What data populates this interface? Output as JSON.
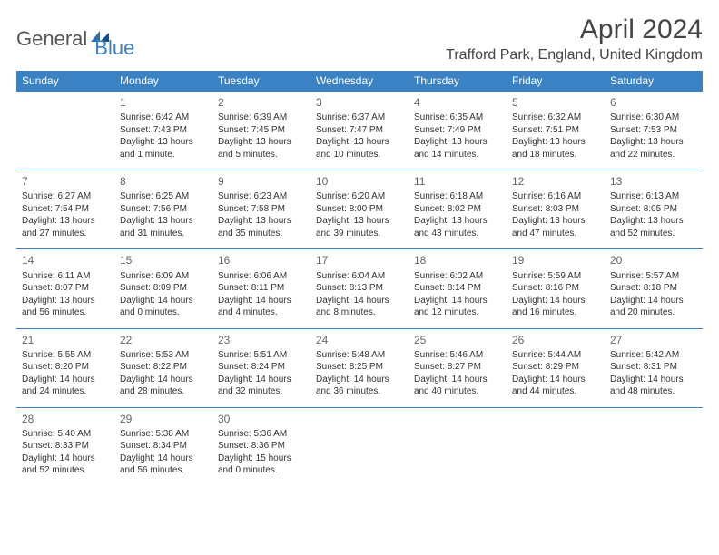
{
  "logo": {
    "part1": "General",
    "part2": "Blue"
  },
  "title": "April 2024",
  "location": "Trafford Park, England, United Kingdom",
  "colors": {
    "header_bg": "#3b82c4",
    "header_text": "#ffffff",
    "border": "#3b7fc4",
    "text": "#333333",
    "logo_gray": "#555555",
    "logo_blue": "#3b7fc4"
  },
  "day_headers": [
    "Sunday",
    "Monday",
    "Tuesday",
    "Wednesday",
    "Thursday",
    "Friday",
    "Saturday"
  ],
  "weeks": [
    [
      null,
      {
        "n": "1",
        "sr": "Sunrise: 6:42 AM",
        "ss": "Sunset: 7:43 PM",
        "d1": "Daylight: 13 hours",
        "d2": "and 1 minute."
      },
      {
        "n": "2",
        "sr": "Sunrise: 6:39 AM",
        "ss": "Sunset: 7:45 PM",
        "d1": "Daylight: 13 hours",
        "d2": "and 5 minutes."
      },
      {
        "n": "3",
        "sr": "Sunrise: 6:37 AM",
        "ss": "Sunset: 7:47 PM",
        "d1": "Daylight: 13 hours",
        "d2": "and 10 minutes."
      },
      {
        "n": "4",
        "sr": "Sunrise: 6:35 AM",
        "ss": "Sunset: 7:49 PM",
        "d1": "Daylight: 13 hours",
        "d2": "and 14 minutes."
      },
      {
        "n": "5",
        "sr": "Sunrise: 6:32 AM",
        "ss": "Sunset: 7:51 PM",
        "d1": "Daylight: 13 hours",
        "d2": "and 18 minutes."
      },
      {
        "n": "6",
        "sr": "Sunrise: 6:30 AM",
        "ss": "Sunset: 7:53 PM",
        "d1": "Daylight: 13 hours",
        "d2": "and 22 minutes."
      }
    ],
    [
      {
        "n": "7",
        "sr": "Sunrise: 6:27 AM",
        "ss": "Sunset: 7:54 PM",
        "d1": "Daylight: 13 hours",
        "d2": "and 27 minutes."
      },
      {
        "n": "8",
        "sr": "Sunrise: 6:25 AM",
        "ss": "Sunset: 7:56 PM",
        "d1": "Daylight: 13 hours",
        "d2": "and 31 minutes."
      },
      {
        "n": "9",
        "sr": "Sunrise: 6:23 AM",
        "ss": "Sunset: 7:58 PM",
        "d1": "Daylight: 13 hours",
        "d2": "and 35 minutes."
      },
      {
        "n": "10",
        "sr": "Sunrise: 6:20 AM",
        "ss": "Sunset: 8:00 PM",
        "d1": "Daylight: 13 hours",
        "d2": "and 39 minutes."
      },
      {
        "n": "11",
        "sr": "Sunrise: 6:18 AM",
        "ss": "Sunset: 8:02 PM",
        "d1": "Daylight: 13 hours",
        "d2": "and 43 minutes."
      },
      {
        "n": "12",
        "sr": "Sunrise: 6:16 AM",
        "ss": "Sunset: 8:03 PM",
        "d1": "Daylight: 13 hours",
        "d2": "and 47 minutes."
      },
      {
        "n": "13",
        "sr": "Sunrise: 6:13 AM",
        "ss": "Sunset: 8:05 PM",
        "d1": "Daylight: 13 hours",
        "d2": "and 52 minutes."
      }
    ],
    [
      {
        "n": "14",
        "sr": "Sunrise: 6:11 AM",
        "ss": "Sunset: 8:07 PM",
        "d1": "Daylight: 13 hours",
        "d2": "and 56 minutes."
      },
      {
        "n": "15",
        "sr": "Sunrise: 6:09 AM",
        "ss": "Sunset: 8:09 PM",
        "d1": "Daylight: 14 hours",
        "d2": "and 0 minutes."
      },
      {
        "n": "16",
        "sr": "Sunrise: 6:06 AM",
        "ss": "Sunset: 8:11 PM",
        "d1": "Daylight: 14 hours",
        "d2": "and 4 minutes."
      },
      {
        "n": "17",
        "sr": "Sunrise: 6:04 AM",
        "ss": "Sunset: 8:13 PM",
        "d1": "Daylight: 14 hours",
        "d2": "and 8 minutes."
      },
      {
        "n": "18",
        "sr": "Sunrise: 6:02 AM",
        "ss": "Sunset: 8:14 PM",
        "d1": "Daylight: 14 hours",
        "d2": "and 12 minutes."
      },
      {
        "n": "19",
        "sr": "Sunrise: 5:59 AM",
        "ss": "Sunset: 8:16 PM",
        "d1": "Daylight: 14 hours",
        "d2": "and 16 minutes."
      },
      {
        "n": "20",
        "sr": "Sunrise: 5:57 AM",
        "ss": "Sunset: 8:18 PM",
        "d1": "Daylight: 14 hours",
        "d2": "and 20 minutes."
      }
    ],
    [
      {
        "n": "21",
        "sr": "Sunrise: 5:55 AM",
        "ss": "Sunset: 8:20 PM",
        "d1": "Daylight: 14 hours",
        "d2": "and 24 minutes."
      },
      {
        "n": "22",
        "sr": "Sunrise: 5:53 AM",
        "ss": "Sunset: 8:22 PM",
        "d1": "Daylight: 14 hours",
        "d2": "and 28 minutes."
      },
      {
        "n": "23",
        "sr": "Sunrise: 5:51 AM",
        "ss": "Sunset: 8:24 PM",
        "d1": "Daylight: 14 hours",
        "d2": "and 32 minutes."
      },
      {
        "n": "24",
        "sr": "Sunrise: 5:48 AM",
        "ss": "Sunset: 8:25 PM",
        "d1": "Daylight: 14 hours",
        "d2": "and 36 minutes."
      },
      {
        "n": "25",
        "sr": "Sunrise: 5:46 AM",
        "ss": "Sunset: 8:27 PM",
        "d1": "Daylight: 14 hours",
        "d2": "and 40 minutes."
      },
      {
        "n": "26",
        "sr": "Sunrise: 5:44 AM",
        "ss": "Sunset: 8:29 PM",
        "d1": "Daylight: 14 hours",
        "d2": "and 44 minutes."
      },
      {
        "n": "27",
        "sr": "Sunrise: 5:42 AM",
        "ss": "Sunset: 8:31 PM",
        "d1": "Daylight: 14 hours",
        "d2": "and 48 minutes."
      }
    ],
    [
      {
        "n": "28",
        "sr": "Sunrise: 5:40 AM",
        "ss": "Sunset: 8:33 PM",
        "d1": "Daylight: 14 hours",
        "d2": "and 52 minutes."
      },
      {
        "n": "29",
        "sr": "Sunrise: 5:38 AM",
        "ss": "Sunset: 8:34 PM",
        "d1": "Daylight: 14 hours",
        "d2": "and 56 minutes."
      },
      {
        "n": "30",
        "sr": "Sunrise: 5:36 AM",
        "ss": "Sunset: 8:36 PM",
        "d1": "Daylight: 15 hours",
        "d2": "and 0 minutes."
      },
      null,
      null,
      null,
      null
    ]
  ]
}
